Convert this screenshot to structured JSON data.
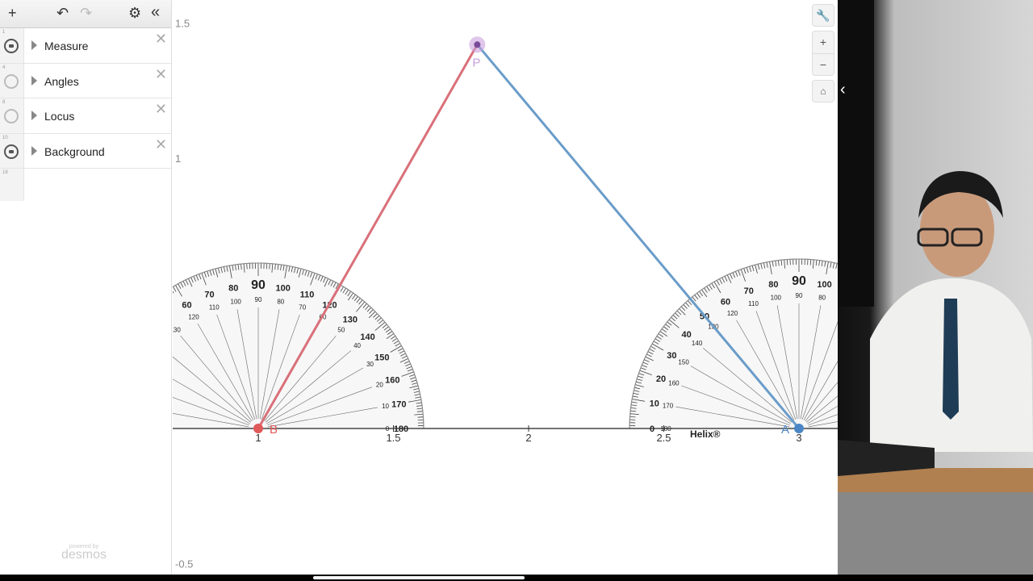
{
  "toolbar": {
    "add": "+",
    "undo": "↶",
    "redo": "↷",
    "settings": "⚙",
    "collapse": "«"
  },
  "expressions": [
    {
      "num": "1",
      "label": "Measure",
      "icon": "folder"
    },
    {
      "num": "4",
      "label": "Angles",
      "icon": "circle"
    },
    {
      "num": "8",
      "label": "Locus",
      "icon": "circle"
    },
    {
      "num": "10",
      "label": "Background",
      "icon": "folder"
    }
  ],
  "next_num": "18",
  "logo": {
    "powered": "powered by",
    "name": "desmos"
  },
  "graph": {
    "x_ticks": [
      "1",
      "1.5",
      "2",
      "2.5",
      "3"
    ],
    "y_ticks": [
      "1.5",
      "1",
      "-0.5"
    ],
    "points": [
      {
        "label": "P",
        "x": 1.81,
        "y": 1.42,
        "color": "#c9a0dc"
      },
      {
        "label": "B",
        "x": 1,
        "y": 0,
        "color": "#e05a5a"
      },
      {
        "label": "A",
        "x": 3,
        "y": 0,
        "color": "#4a86c5"
      }
    ],
    "segments": [
      {
        "from": "B",
        "to": "P",
        "color": "#d9707a"
      },
      {
        "from": "A",
        "to": "P",
        "color": "#6a9cc9"
      }
    ],
    "protractor_brand": "Helix®"
  },
  "controls": {
    "wrench": "wrench-icon",
    "zoom_in": "+",
    "zoom_out": "−",
    "home": "home-icon"
  },
  "video_expand": "‹"
}
